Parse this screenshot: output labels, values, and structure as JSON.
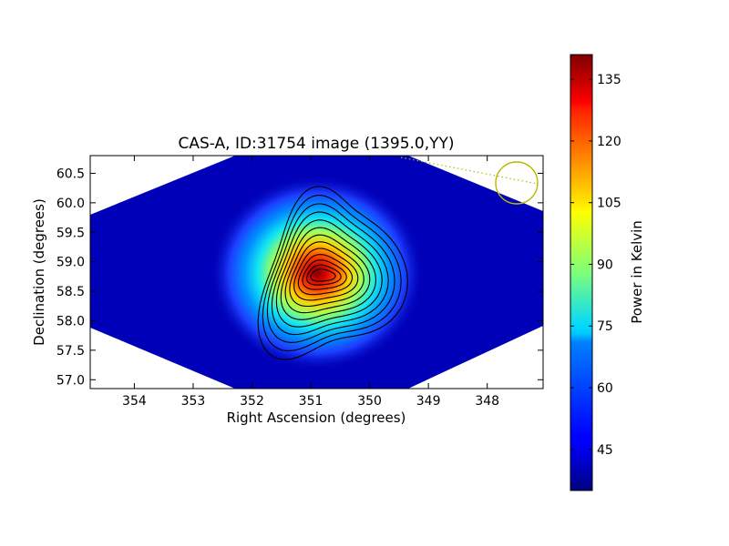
{
  "chart_data": {
    "type": "heatmap",
    "title": "CAS-A, ID:31754 image (1395.0,YY)",
    "xlabel": "Right Ascension (degrees)",
    "ylabel": "Declination (degrees)",
    "xlim": [
      354.75,
      347.05
    ],
    "ylim": [
      56.85,
      60.8
    ],
    "x_ticks": [
      354,
      353,
      352,
      351,
      350,
      349,
      348
    ],
    "x_tick_labels": [
      "354",
      "353",
      "352",
      "351",
      "350",
      "349",
      "348"
    ],
    "y_ticks": [
      60.5,
      60.0,
      59.5,
      59.0,
      58.5,
      58.0,
      57.5,
      57.0
    ],
    "y_tick_labels": [
      "60.5",
      "60.0",
      "59.5",
      "59.0",
      "58.5",
      "58.0",
      "57.5",
      "57.0"
    ],
    "colorbar": {
      "label": "Power in Kelvin",
      "range": [
        35,
        141
      ],
      "ticks": [
        45,
        60,
        75,
        90,
        105,
        120,
        135
      ],
      "tick_labels": [
        "45",
        "60",
        "75",
        "90",
        "105",
        "120",
        "135"
      ],
      "colormap": "jet"
    },
    "source": {
      "ra": 350.85,
      "dec": 58.8,
      "peak": 141
    },
    "background_level": 35,
    "contour_count": 13,
    "beam_circle": {
      "ra": 347.45,
      "dec": 60.35
    },
    "grid": false
  }
}
